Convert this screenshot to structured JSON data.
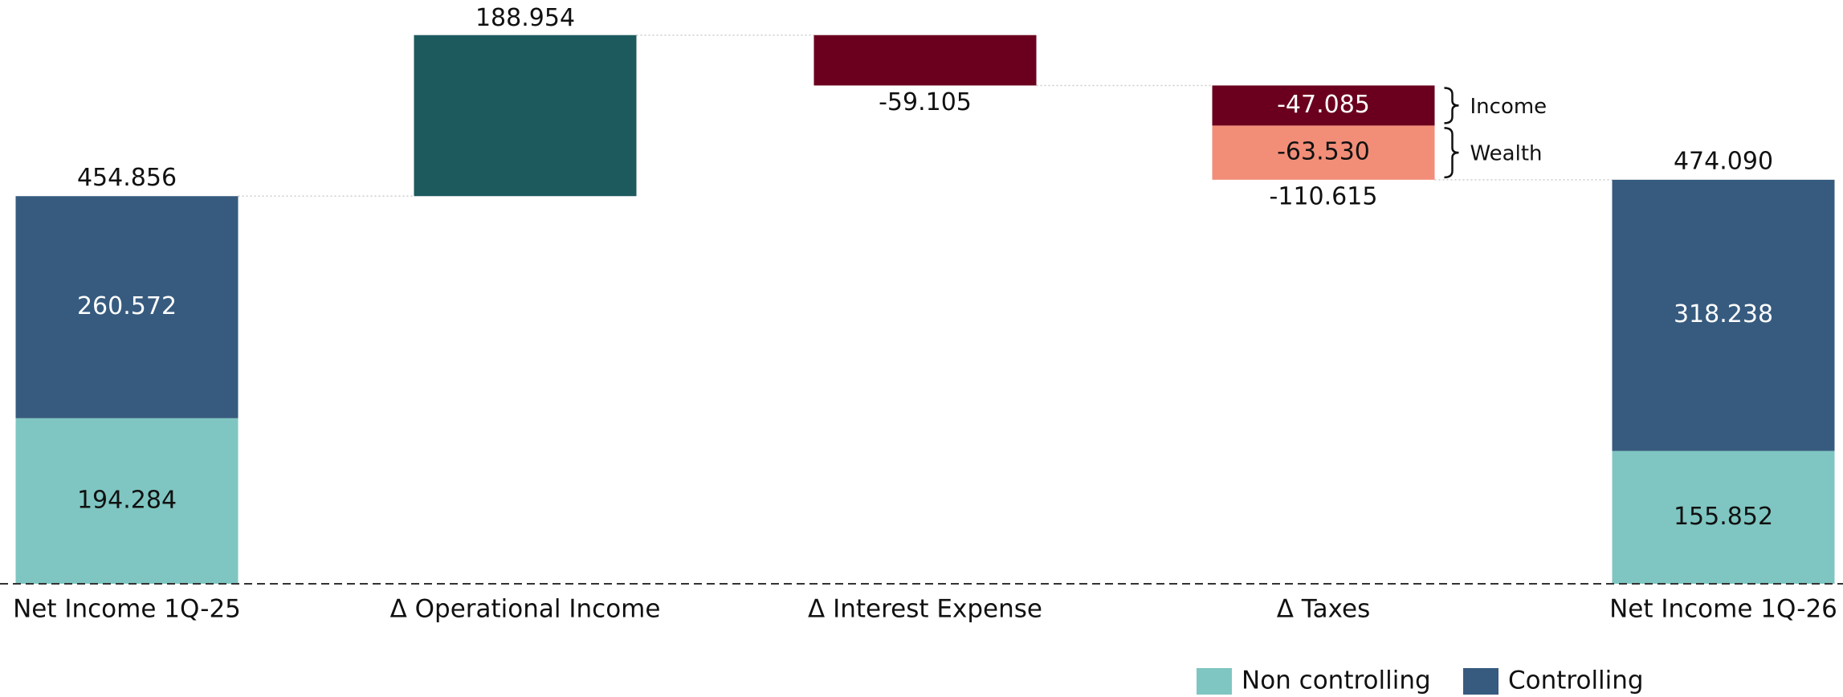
{
  "chart_data": {
    "type": "waterfall",
    "categories": [
      "Net Income 1Q-25",
      "Δ Operational Income",
      "Δ Interest Expense",
      "Δ Taxes",
      "Net Income 1Q-26"
    ],
    "series": [
      {
        "name": "Non controlling",
        "color": "#7fc6c2",
        "values": [
          194.284,
          null,
          null,
          null,
          155.852
        ]
      },
      {
        "name": "Controlling",
        "color": "#375b7f",
        "values": [
          260.572,
          null,
          null,
          null,
          318.238
        ]
      }
    ],
    "totals": [
      454.856,
      null,
      null,
      null,
      474.09
    ],
    "total_labels": [
      "454.856",
      null,
      null,
      null,
      "474.090"
    ],
    "deltas": [
      null,
      {
        "values": [
          188.954
        ],
        "value_labels": [
          "188.954"
        ],
        "colors": [
          "#1c5a5e"
        ]
      },
      {
        "values": [
          -59.105
        ],
        "value_labels": [
          "-59.105"
        ],
        "colors": [
          "#6b001e"
        ]
      },
      {
        "values": [
          -47.085,
          -63.53
        ],
        "value_labels": [
          "-47.085",
          "-63.530"
        ],
        "colors": [
          "#6b001e",
          "#f28e78"
        ],
        "parts": [
          "Income",
          "Wealth"
        ],
        "total": -110.615,
        "total_label": "-110.615"
      },
      null
    ],
    "ylim": [
      0,
      685
    ]
  }
}
